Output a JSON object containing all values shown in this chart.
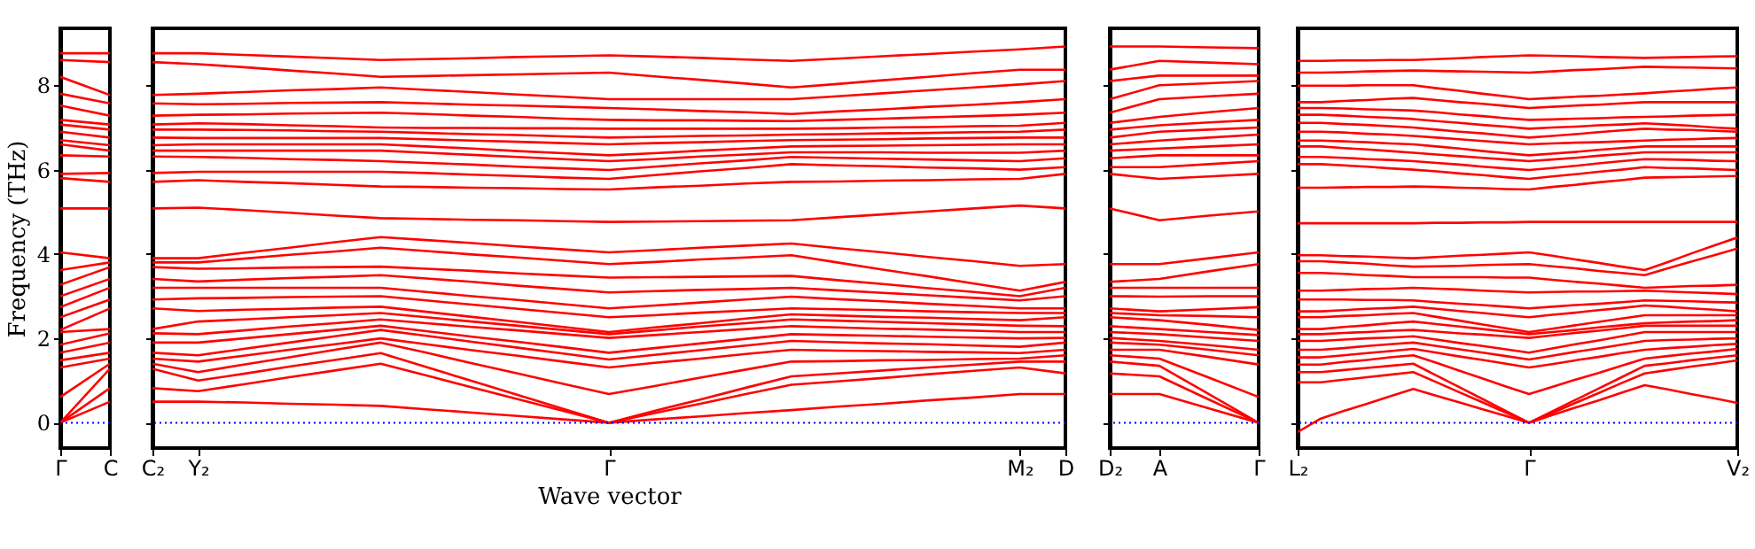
{
  "chart_data": [
    {
      "type": "line",
      "ylabel": "Frequency (THz)",
      "categories": [
        "Γ",
        "C"
      ],
      "ylim": [
        -0.6,
        9.35
      ],
      "yticks": [
        0,
        2,
        4,
        6,
        8
      ],
      "grid": false,
      "ref_lines": [
        {
          "axis": "y",
          "value": 0,
          "color": "#0000ff",
          "line_style": "dotted"
        }
      ],
      "series": [
        {
          "color": "#ff0000",
          "values": [
            0,
            0.5
          ]
        },
        {
          "color": "#ff0000",
          "values": [
            0,
            0.82
          ]
        },
        {
          "color": "#ff0000",
          "values": [
            0,
            1.28
          ]
        },
        {
          "color": "#ff0000",
          "values": [
            0.61,
            1.4
          ]
        },
        {
          "color": "#ff0000",
          "values": [
            1.31,
            1.52
          ]
        },
        {
          "color": "#ff0000",
          "values": [
            1.48,
            1.66
          ]
        },
        {
          "color": "#ff0000",
          "values": [
            1.66,
            1.9
          ]
        },
        {
          "color": "#ff0000",
          "values": [
            1.85,
            2.12
          ]
        },
        {
          "color": "#ff0000",
          "values": [
            2.15,
            2.22
          ]
        },
        {
          "color": "#ff0000",
          "values": [
            2.2,
            2.71
          ]
        },
        {
          "color": "#ff0000",
          "values": [
            2.5,
            2.92
          ]
        },
        {
          "color": "#ff0000",
          "values": [
            2.74,
            3.2
          ]
        },
        {
          "color": "#ff0000",
          "values": [
            3.0,
            3.41
          ]
        },
        {
          "color": "#ff0000",
          "values": [
            3.27,
            3.69
          ]
        },
        {
          "color": "#ff0000",
          "values": [
            3.62,
            3.8
          ]
        },
        {
          "color": "#ff0000",
          "values": [
            4.04,
            3.9
          ]
        },
        {
          "color": "#ff0000",
          "values": [
            5.08,
            5.08
          ]
        },
        {
          "color": "#ff0000",
          "values": [
            5.8,
            5.71
          ]
        },
        {
          "color": "#ff0000",
          "values": [
            5.9,
            5.92
          ]
        },
        {
          "color": "#ff0000",
          "values": [
            6.34,
            6.31
          ]
        },
        {
          "color": "#ff0000",
          "values": [
            6.6,
            6.45
          ]
        },
        {
          "color": "#ff0000",
          "values": [
            6.7,
            6.58
          ]
        },
        {
          "color": "#ff0000",
          "values": [
            6.9,
            6.76
          ]
        },
        {
          "color": "#ff0000",
          "values": [
            7.07,
            6.95
          ]
        },
        {
          "color": "#ff0000",
          "values": [
            7.18,
            7.07
          ]
        },
        {
          "color": "#ff0000",
          "values": [
            7.52,
            7.28
          ]
        },
        {
          "color": "#ff0000",
          "values": [
            7.8,
            7.57
          ]
        },
        {
          "color": "#ff0000",
          "values": [
            8.2,
            7.77
          ]
        },
        {
          "color": "#ff0000",
          "values": [
            8.6,
            8.55
          ]
        },
        {
          "color": "#ff0000",
          "values": [
            8.76,
            8.76
          ]
        }
      ]
    },
    {
      "type": "line",
      "xlabel": "Wave vector",
      "tick_labels": "x",
      "categories": [
        "C₂",
        "Y₂",
        null,
        null,
        null,
        null,
        null,
        null,
        null,
        null,
        "Γ",
        null,
        null,
        null,
        null,
        null,
        null,
        null,
        null,
        "M₂",
        "D"
      ],
      "ylim": [
        -0.6,
        9.35
      ],
      "yticks": [
        0,
        2,
        4,
        6,
        8
      ],
      "grid": false,
      "ref_lines": [
        {
          "axis": "y",
          "value": 0,
          "color": "#0000ff",
          "line_style": "dotted"
        }
      ],
      "series": [
        {
          "color": "#ff0000",
          "values": [
            0.5,
            0.5,
            0.48,
            0.45,
            0.43,
            0.4,
            0.32,
            0.24,
            0.16,
            0.08,
            0,
            0.08,
            0.15,
            0.23,
            0.3,
            0.38,
            0.45,
            0.53,
            0.6,
            0.68,
            0.68
          ]
        },
        {
          "color": "#ff0000",
          "values": [
            0.82,
            0.75,
            0.91,
            1.08,
            1.24,
            1.4,
            1.12,
            0.84,
            0.56,
            0.28,
            0,
            0.23,
            0.45,
            0.68,
            0.9,
            0.98,
            1.06,
            1.15,
            1.23,
            1.31,
            1.17
          ]
        },
        {
          "color": "#ff0000",
          "values": [
            1.28,
            1.0,
            1.16,
            1.33,
            1.49,
            1.65,
            1.32,
            0.99,
            0.66,
            0.33,
            0,
            0.28,
            0.55,
            0.83,
            1.1,
            1.17,
            1.24,
            1.31,
            1.38,
            1.45,
            1.45
          ]
        },
        {
          "color": "#ff0000",
          "values": [
            1.4,
            1.2,
            1.38,
            1.55,
            1.73,
            1.9,
            1.66,
            1.41,
            1.17,
            0.92,
            0.68,
            0.87,
            1.07,
            1.26,
            1.45,
            1.46,
            1.48,
            1.49,
            1.51,
            1.52,
            1.6
          ]
        },
        {
          "color": "#ff0000",
          "values": [
            1.52,
            1.45,
            1.59,
            1.73,
            1.86,
            2.0,
            1.86,
            1.72,
            1.59,
            1.45,
            1.31,
            1.42,
            1.52,
            1.63,
            1.73,
            1.71,
            1.7,
            1.68,
            1.67,
            1.65,
            1.73
          ]
        },
        {
          "color": "#ff0000",
          "values": [
            1.66,
            1.6,
            1.75,
            1.9,
            2.05,
            2.2,
            2.06,
            1.92,
            1.78,
            1.64,
            1.5,
            1.61,
            1.72,
            1.83,
            1.94,
            1.91,
            1.88,
            1.86,
            1.83,
            1.8,
            1.9
          ]
        },
        {
          "color": "#ff0000",
          "values": [
            1.9,
            1.9,
            2.0,
            2.1,
            2.2,
            2.3,
            2.17,
            2.04,
            1.92,
            1.79,
            1.66,
            1.77,
            1.88,
            1.99,
            2.1,
            2.08,
            2.06,
            2.04,
            2.02,
            2.0,
            2.01
          ]
        },
        {
          "color": "#ff0000",
          "values": [
            2.12,
            2.1,
            2.19,
            2.28,
            2.36,
            2.45,
            2.36,
            2.27,
            2.19,
            2.1,
            2.01,
            2.08,
            2.15,
            2.22,
            2.29,
            2.26,
            2.23,
            2.21,
            2.18,
            2.15,
            2.15
          ]
        },
        {
          "color": "#ff0000",
          "values": [
            2.22,
            2.4,
            2.45,
            2.5,
            2.55,
            2.6,
            2.5,
            2.4,
            2.3,
            2.2,
            2.1,
            2.19,
            2.28,
            2.36,
            2.45,
            2.42,
            2.39,
            2.36,
            2.33,
            2.3,
            2.29
          ]
        },
        {
          "color": "#ff0000",
          "values": [
            2.71,
            2.65,
            2.68,
            2.7,
            2.73,
            2.75,
            2.63,
            2.51,
            2.39,
            2.27,
            2.15,
            2.26,
            2.36,
            2.47,
            2.57,
            2.54,
            2.51,
            2.49,
            2.46,
            2.43,
            2.5
          ]
        },
        {
          "color": "#ff0000",
          "values": [
            2.92,
            2.95,
            2.96,
            2.98,
            2.99,
            3.0,
            2.9,
            2.8,
            2.7,
            2.6,
            2.5,
            2.55,
            2.61,
            2.66,
            2.71,
            2.69,
            2.67,
            2.64,
            2.62,
            2.6,
            2.6
          ]
        },
        {
          "color": "#ff0000",
          "values": [
            3.2,
            3.2,
            3.2,
            3.2,
            3.2,
            3.2,
            3.1,
            3.0,
            2.91,
            2.81,
            2.71,
            2.78,
            2.85,
            2.92,
            2.99,
            2.93,
            2.88,
            2.82,
            2.77,
            2.71,
            2.71
          ]
        },
        {
          "color": "#ff0000",
          "values": [
            3.41,
            3.35,
            3.39,
            3.43,
            3.46,
            3.5,
            3.42,
            3.34,
            3.25,
            3.17,
            3.09,
            3.12,
            3.15,
            3.17,
            3.2,
            3.14,
            3.08,
            3.02,
            2.96,
            2.9,
            3.0
          ]
        },
        {
          "color": "#ff0000",
          "values": [
            3.69,
            3.65,
            3.66,
            3.68,
            3.69,
            3.7,
            3.65,
            3.6,
            3.54,
            3.49,
            3.44,
            3.45,
            3.46,
            3.47,
            3.48,
            3.38,
            3.29,
            3.19,
            3.1,
            3.0,
            3.2
          ]
        },
        {
          "color": "#ff0000",
          "values": [
            3.8,
            3.8,
            3.89,
            3.98,
            4.06,
            4.15,
            4.07,
            3.99,
            3.92,
            3.84,
            3.76,
            3.81,
            3.87,
            3.92,
            3.97,
            3.8,
            3.63,
            3.47,
            3.3,
            3.13,
            3.34
          ]
        },
        {
          "color": "#ff0000",
          "values": [
            3.9,
            3.9,
            4.03,
            4.15,
            4.28,
            4.4,
            4.33,
            4.26,
            4.18,
            4.11,
            4.04,
            4.09,
            4.15,
            4.2,
            4.25,
            4.14,
            4.04,
            3.93,
            3.83,
            3.72,
            3.76
          ]
        },
        {
          "color": "#ff0000",
          "values": [
            5.08,
            5.1,
            5.04,
            4.98,
            4.91,
            4.85,
            4.83,
            4.81,
            4.8,
            4.78,
            4.76,
            4.77,
            4.78,
            4.79,
            4.8,
            4.87,
            4.94,
            5.01,
            5.08,
            5.15,
            5.08
          ]
        },
        {
          "color": "#ff0000",
          "values": [
            5.71,
            5.75,
            5.71,
            5.68,
            5.64,
            5.6,
            5.59,
            5.57,
            5.56,
            5.54,
            5.53,
            5.58,
            5.62,
            5.67,
            5.71,
            5.72,
            5.74,
            5.75,
            5.77,
            5.78,
            5.9
          ]
        },
        {
          "color": "#ff0000",
          "values": [
            5.92,
            5.95,
            5.95,
            5.95,
            5.95,
            5.95,
            5.92,
            5.88,
            5.85,
            5.81,
            5.78,
            5.87,
            5.96,
            6.04,
            6.13,
            6.1,
            6.08,
            6.05,
            6.03,
            6.0,
            6.06
          ]
        },
        {
          "color": "#ff0000",
          "values": [
            6.31,
            6.3,
            6.28,
            6.25,
            6.23,
            6.2,
            6.16,
            6.12,
            6.07,
            6.03,
            5.99,
            6.07,
            6.15,
            6.22,
            6.3,
            6.28,
            6.26,
            6.24,
            6.22,
            6.2,
            6.27
          ]
        },
        {
          "color": "#ff0000",
          "values": [
            6.45,
            6.45,
            6.45,
            6.45,
            6.45,
            6.45,
            6.4,
            6.35,
            6.3,
            6.25,
            6.2,
            6.25,
            6.31,
            6.36,
            6.41,
            6.41,
            6.41,
            6.4,
            6.4,
            6.4,
            6.45
          ]
        },
        {
          "color": "#ff0000",
          "values": [
            6.58,
            6.6,
            6.6,
            6.6,
            6.6,
            6.6,
            6.55,
            6.5,
            6.44,
            6.39,
            6.34,
            6.39,
            6.45,
            6.5,
            6.55,
            6.56,
            6.57,
            6.58,
            6.59,
            6.6,
            6.6
          ]
        },
        {
          "color": "#ff0000",
          "values": [
            6.76,
            6.75,
            6.75,
            6.75,
            6.75,
            6.75,
            6.72,
            6.69,
            6.66,
            6.63,
            6.6,
            6.63,
            6.65,
            6.68,
            6.7,
            6.71,
            6.72,
            6.74,
            6.75,
            6.76,
            6.76
          ]
        },
        {
          "color": "#ff0000",
          "values": [
            6.95,
            6.95,
            6.94,
            6.93,
            6.91,
            6.9,
            6.87,
            6.84,
            6.82,
            6.79,
            6.76,
            6.78,
            6.8,
            6.81,
            6.83,
            6.84,
            6.86,
            6.87,
            6.89,
            6.9,
            6.95
          ]
        },
        {
          "color": "#ff0000",
          "values": [
            7.07,
            7.1,
            7.08,
            7.05,
            7.03,
            7.0,
            6.99,
            6.99,
            6.98,
            6.98,
            6.97,
            6.97,
            6.97,
            6.97,
            6.97,
            6.98,
            7.0,
            7.01,
            7.03,
            7.04,
            7.11
          ]
        },
        {
          "color": "#ff0000",
          "values": [
            7.28,
            7.3,
            7.31,
            7.33,
            7.34,
            7.35,
            7.32,
            7.28,
            7.25,
            7.21,
            7.18,
            7.17,
            7.17,
            7.16,
            7.15,
            7.18,
            7.21,
            7.24,
            7.27,
            7.3,
            7.35
          ]
        },
        {
          "color": "#ff0000",
          "values": [
            7.57,
            7.55,
            7.56,
            7.58,
            7.59,
            7.6,
            7.57,
            7.54,
            7.52,
            7.49,
            7.46,
            7.43,
            7.39,
            7.36,
            7.32,
            7.38,
            7.43,
            7.49,
            7.54,
            7.6,
            7.67
          ]
        },
        {
          "color": "#ff0000",
          "values": [
            7.77,
            7.8,
            7.84,
            7.88,
            7.91,
            7.95,
            7.89,
            7.84,
            7.78,
            7.73,
            7.67,
            7.67,
            7.67,
            7.67,
            7.67,
            7.74,
            7.81,
            7.88,
            7.95,
            8.02,
            8.1
          ]
        },
        {
          "color": "#ff0000",
          "values": [
            8.55,
            8.5,
            8.43,
            8.35,
            8.28,
            8.2,
            8.22,
            8.24,
            8.26,
            8.28,
            8.3,
            8.21,
            8.13,
            8.04,
            7.95,
            8.03,
            8.12,
            8.2,
            8.29,
            8.37,
            8.37
          ]
        },
        {
          "color": "#ff0000",
          "values": [
            8.76,
            8.76,
            8.72,
            8.68,
            8.64,
            8.6,
            8.62,
            8.64,
            8.67,
            8.69,
            8.71,
            8.68,
            8.65,
            8.61,
            8.58,
            8.63,
            8.69,
            8.74,
            8.8,
            8.85,
            8.92
          ]
        }
      ]
    },
    {
      "type": "line",
      "tick_labels": "x",
      "categories": [
        "D₂",
        "A",
        null,
        "Γ"
      ],
      "ylim": [
        -0.6,
        9.35
      ],
      "yticks": [
        0,
        2,
        4,
        6,
        8
      ],
      "grid": false,
      "ref_lines": [
        {
          "axis": "y",
          "value": 0,
          "color": "#0000ff",
          "line_style": "dotted"
        }
      ],
      "series": [
        {
          "color": "#ff0000",
          "values": [
            0.68,
            0.68,
            0.34,
            0
          ]
        },
        {
          "color": "#ff0000",
          "values": [
            1.17,
            1.1,
            0.55,
            0
          ]
        },
        {
          "color": "#ff0000",
          "values": [
            1.45,
            1.35,
            0.68,
            0
          ]
        },
        {
          "color": "#ff0000",
          "values": [
            1.6,
            1.52,
            1.07,
            0.61
          ]
        },
        {
          "color": "#ff0000",
          "values": [
            1.73,
            1.73,
            1.56,
            1.38
          ]
        },
        {
          "color": "#ff0000",
          "values": [
            1.9,
            1.85,
            1.73,
            1.6
          ]
        },
        {
          "color": "#ff0000",
          "values": [
            2.01,
            1.94,
            1.84,
            1.73
          ]
        },
        {
          "color": "#ff0000",
          "values": [
            2.15,
            2.1,
            2.02,
            1.94
          ]
        },
        {
          "color": "#ff0000",
          "values": [
            2.29,
            2.22,
            2.15,
            2.08
          ]
        },
        {
          "color": "#ff0000",
          "values": [
            2.5,
            2.43,
            2.32,
            2.2
          ]
        },
        {
          "color": "#ff0000",
          "values": [
            2.6,
            2.55,
            2.53,
            2.5
          ]
        },
        {
          "color": "#ff0000",
          "values": [
            2.71,
            2.64,
            2.69,
            2.74
          ]
        },
        {
          "color": "#ff0000",
          "values": [
            3.0,
            2.99,
            3.0,
            3.0
          ]
        },
        {
          "color": "#ff0000",
          "values": [
            3.2,
            3.2,
            3.2,
            3.2
          ]
        },
        {
          "color": "#ff0000",
          "values": [
            3.34,
            3.41,
            3.59,
            3.76
          ]
        },
        {
          "color": "#ff0000",
          "values": [
            3.76,
            3.76,
            3.9,
            4.04
          ]
        },
        {
          "color": "#ff0000",
          "values": [
            5.08,
            4.8,
            4.91,
            5.01
          ]
        },
        {
          "color": "#ff0000",
          "values": [
            5.9,
            5.78,
            5.84,
            5.9
          ]
        },
        {
          "color": "#ff0000",
          "values": [
            6.06,
            6.06,
            6.13,
            6.2
          ]
        },
        {
          "color": "#ff0000",
          "values": [
            6.27,
            6.34,
            6.34,
            6.34
          ]
        },
        {
          "color": "#ff0000",
          "values": [
            6.45,
            6.5,
            6.55,
            6.6
          ]
        },
        {
          "color": "#ff0000",
          "values": [
            6.6,
            6.69,
            6.76,
            6.83
          ]
        },
        {
          "color": "#ff0000",
          "values": [
            6.76,
            6.9,
            6.95,
            7.0
          ]
        },
        {
          "color": "#ff0000",
          "values": [
            6.95,
            7.05,
            7.12,
            7.18
          ]
        },
        {
          "color": "#ff0000",
          "values": [
            7.11,
            7.25,
            7.36,
            7.46
          ]
        },
        {
          "color": "#ff0000",
          "values": [
            7.35,
            7.67,
            7.74,
            7.8
          ]
        },
        {
          "color": "#ff0000",
          "values": [
            7.67,
            8.0,
            8.05,
            8.1
          ]
        },
        {
          "color": "#ff0000",
          "values": [
            8.1,
            8.23,
            8.23,
            8.23
          ]
        },
        {
          "color": "#ff0000",
          "values": [
            8.37,
            8.58,
            8.54,
            8.5
          ]
        },
        {
          "color": "#ff0000",
          "values": [
            8.92,
            8.92,
            8.9,
            8.88
          ]
        }
      ]
    },
    {
      "type": "line",
      "tick_labels": "x",
      "categories": [
        "L₂",
        null,
        null,
        null,
        null,
        null,
        null,
        null,
        null,
        null,
        "Γ",
        null,
        null,
        null,
        null,
        null,
        null,
        null,
        null,
        "V₂"
      ],
      "ylim": [
        -0.6,
        9.35
      ],
      "yticks": [
        0,
        2,
        4,
        6,
        8
      ],
      "grid": false,
      "ref_lines": [
        {
          "axis": "y",
          "value": 0,
          "color": "#0000ff",
          "line_style": "dotted"
        }
      ],
      "series": [
        {
          "color": "#ff0000",
          "values": [
            -0.22,
            0.1,
            0.28,
            0.45,
            0.63,
            0.8,
            0.64,
            0.48,
            0.32,
            0.16,
            0,
            0.18,
            0.36,
            0.53,
            0.71,
            0.89,
            0.79,
            0.68,
            0.58,
            0.47
          ]
        },
        {
          "color": "#ff0000",
          "values": [
            0.96,
            0.96,
            1.02,
            1.08,
            1.14,
            1.2,
            0.96,
            0.72,
            0.48,
            0.24,
            0,
            0.23,
            0.47,
            0.7,
            0.94,
            1.17,
            1.25,
            1.33,
            1.4,
            1.48
          ]
        },
        {
          "color": "#ff0000",
          "values": [
            1.2,
            1.2,
            1.25,
            1.3,
            1.35,
            1.4,
            1.12,
            0.84,
            0.56,
            0.28,
            0,
            0.27,
            0.54,
            0.81,
            1.08,
            1.35,
            1.41,
            1.48,
            1.54,
            1.6
          ]
        },
        {
          "color": "#ff0000",
          "values": [
            1.38,
            1.38,
            1.44,
            1.49,
            1.55,
            1.6,
            1.42,
            1.23,
            1.05,
            0.86,
            0.68,
            0.85,
            1.02,
            1.18,
            1.35,
            1.52,
            1.58,
            1.64,
            1.69,
            1.75
          ]
        },
        {
          "color": "#ff0000",
          "values": [
            1.55,
            1.55,
            1.6,
            1.65,
            1.7,
            1.75,
            1.66,
            1.57,
            1.49,
            1.4,
            1.31,
            1.39,
            1.48,
            1.56,
            1.65,
            1.73,
            1.77,
            1.8,
            1.84,
            1.87
          ]
        },
        {
          "color": "#ff0000",
          "values": [
            1.73,
            1.73,
            1.77,
            1.82,
            1.86,
            1.9,
            1.82,
            1.74,
            1.66,
            1.58,
            1.5,
            1.59,
            1.68,
            1.76,
            1.85,
            1.94,
            1.96,
            1.97,
            1.99,
            2.0
          ]
        },
        {
          "color": "#ff0000",
          "values": [
            1.94,
            1.94,
            1.97,
            2.0,
            2.02,
            2.05,
            1.97,
            1.89,
            1.82,
            1.74,
            1.66,
            1.76,
            1.86,
            1.95,
            2.05,
            2.15,
            2.15,
            2.15,
            2.15,
            2.15
          ]
        },
        {
          "color": "#ff0000",
          "values": [
            2.1,
            2.1,
            2.13,
            2.15,
            2.18,
            2.2,
            2.16,
            2.12,
            2.09,
            2.05,
            2.01,
            2.07,
            2.13,
            2.18,
            2.24,
            2.3,
            2.3,
            2.3,
            2.3,
            2.3
          ]
        },
        {
          "color": "#ff0000",
          "values": [
            2.22,
            2.22,
            2.27,
            2.31,
            2.36,
            2.4,
            2.34,
            2.28,
            2.22,
            2.16,
            2.1,
            2.15,
            2.2,
            2.26,
            2.31,
            2.36,
            2.38,
            2.4,
            2.41,
            2.43
          ]
        },
        {
          "color": "#ff0000",
          "values": [
            2.5,
            2.5,
            2.53,
            2.55,
            2.58,
            2.6,
            2.51,
            2.42,
            2.33,
            2.24,
            2.15,
            2.23,
            2.31,
            2.39,
            2.47,
            2.55,
            2.55,
            2.55,
            2.55,
            2.55
          ]
        },
        {
          "color": "#ff0000",
          "values": [
            2.64,
            2.64,
            2.67,
            2.7,
            2.72,
            2.75,
            2.7,
            2.65,
            2.6,
            2.55,
            2.5,
            2.56,
            2.61,
            2.67,
            2.72,
            2.78,
            2.75,
            2.71,
            2.68,
            2.64
          ]
        },
        {
          "color": "#ff0000",
          "values": [
            2.92,
            2.92,
            2.92,
            2.91,
            2.91,
            2.9,
            2.86,
            2.82,
            2.79,
            2.75,
            2.71,
            2.75,
            2.79,
            2.82,
            2.86,
            2.9,
            2.89,
            2.88,
            2.86,
            2.85
          ]
        },
        {
          "color": "#ff0000",
          "values": [
            3.13,
            3.13,
            3.15,
            3.17,
            3.18,
            3.2,
            3.18,
            3.16,
            3.13,
            3.11,
            3.09,
            3.1,
            3.11,
            3.11,
            3.12,
            3.13,
            3.11,
            3.09,
            3.07,
            3.05
          ]
        },
        {
          "color": "#ff0000",
          "values": [
            3.55,
            3.55,
            3.53,
            3.5,
            3.48,
            3.45,
            3.45,
            3.45,
            3.45,
            3.44,
            3.44,
            3.39,
            3.34,
            3.3,
            3.25,
            3.2,
            3.22,
            3.24,
            3.25,
            3.27
          ]
        },
        {
          "color": "#ff0000",
          "values": [
            3.83,
            3.83,
            3.8,
            3.77,
            3.73,
            3.7,
            3.71,
            3.72,
            3.74,
            3.75,
            3.76,
            3.71,
            3.66,
            3.6,
            3.55,
            3.5,
            3.66,
            3.82,
            3.97,
            4.13
          ]
        },
        {
          "color": "#ff0000",
          "values": [
            3.97,
            3.97,
            3.95,
            3.94,
            3.92,
            3.9,
            3.93,
            3.96,
            3.98,
            4.01,
            4.04,
            3.96,
            3.87,
            3.79,
            3.7,
            3.62,
            3.81,
            4.01,
            4.2,
            4.39
          ]
        },
        {
          "color": "#ff0000",
          "values": [
            4.73,
            4.73,
            4.73,
            4.73,
            4.73,
            4.73,
            4.74,
            4.74,
            4.75,
            4.75,
            4.76,
            4.76,
            4.76,
            4.76,
            4.76,
            4.76,
            4.76,
            4.76,
            4.76,
            4.76
          ]
        },
        {
          "color": "#ff0000",
          "values": [
            5.57,
            5.57,
            5.58,
            5.59,
            5.59,
            5.6,
            5.59,
            5.57,
            5.56,
            5.54,
            5.53,
            5.59,
            5.64,
            5.7,
            5.75,
            5.81,
            5.82,
            5.83,
            5.84,
            5.85
          ]
        },
        {
          "color": "#ff0000",
          "values": [
            6.13,
            6.13,
            6.1,
            6.07,
            6.03,
            6.0,
            5.96,
            5.91,
            5.87,
            5.82,
            5.78,
            5.84,
            5.89,
            5.95,
            6.0,
            6.06,
            6.04,
            6.03,
            6.01,
            5.99
          ]
        },
        {
          "color": "#ff0000",
          "values": [
            6.3,
            6.3,
            6.28,
            6.25,
            6.23,
            6.2,
            6.16,
            6.12,
            6.07,
            6.03,
            5.99,
            6.04,
            6.09,
            6.15,
            6.2,
            6.25,
            6.24,
            6.23,
            6.21,
            6.2
          ]
        },
        {
          "color": "#ff0000",
          "values": [
            6.55,
            6.55,
            6.51,
            6.48,
            6.44,
            6.4,
            6.36,
            6.32,
            6.28,
            6.24,
            6.2,
            6.24,
            6.28,
            6.33,
            6.37,
            6.41,
            6.41,
            6.41,
            6.41,
            6.41
          ]
        },
        {
          "color": "#ff0000",
          "values": [
            6.69,
            6.69,
            6.67,
            6.65,
            6.62,
            6.6,
            6.55,
            6.5,
            6.44,
            6.39,
            6.34,
            6.38,
            6.42,
            6.47,
            6.51,
            6.55,
            6.55,
            6.55,
            6.55,
            6.55
          ]
        },
        {
          "color": "#ff0000",
          "values": [
            6.9,
            6.9,
            6.88,
            6.85,
            6.83,
            6.8,
            6.76,
            6.72,
            6.68,
            6.64,
            6.6,
            6.62,
            6.64,
            6.65,
            6.67,
            6.69,
            6.71,
            6.72,
            6.74,
            6.75
          ]
        },
        {
          "color": "#ff0000",
          "values": [
            7.11,
            7.11,
            7.08,
            7.06,
            7.03,
            7.0,
            6.95,
            6.9,
            6.86,
            6.81,
            6.76,
            6.8,
            6.84,
            6.89,
            6.93,
            6.97,
            6.95,
            6.94,
            6.92,
            6.9
          ]
        },
        {
          "color": "#ff0000",
          "values": [
            7.3,
            7.3,
            7.28,
            7.25,
            7.23,
            7.2,
            7.15,
            7.11,
            7.06,
            7.02,
            6.97,
            7.0,
            7.02,
            7.05,
            7.07,
            7.1,
            7.07,
            7.04,
            7.0,
            6.97
          ]
        },
        {
          "color": "#ff0000",
          "values": [
            7.46,
            7.46,
            7.45,
            7.43,
            7.42,
            7.4,
            7.36,
            7.31,
            7.27,
            7.22,
            7.18,
            7.19,
            7.21,
            7.22,
            7.24,
            7.25,
            7.26,
            7.28,
            7.29,
            7.3
          ]
        },
        {
          "color": "#ff0000",
          "values": [
            7.6,
            7.6,
            7.63,
            7.65,
            7.68,
            7.7,
            7.65,
            7.6,
            7.56,
            7.51,
            7.46,
            7.49,
            7.52,
            7.54,
            7.57,
            7.6,
            7.6,
            7.6,
            7.6,
            7.6
          ]
        },
        {
          "color": "#ff0000",
          "values": [
            7.99,
            7.99,
            7.99,
            8.0,
            8.0,
            8.0,
            7.93,
            7.87,
            7.8,
            7.74,
            7.67,
            7.7,
            7.73,
            7.75,
            7.78,
            7.81,
            7.85,
            7.88,
            7.92,
            7.95
          ]
        },
        {
          "color": "#ff0000",
          "values": [
            8.3,
            8.3,
            8.31,
            8.33,
            8.34,
            8.35,
            8.34,
            8.33,
            8.32,
            8.31,
            8.3,
            8.33,
            8.36,
            8.38,
            8.41,
            8.44,
            8.43,
            8.42,
            8.41,
            8.4
          ]
        },
        {
          "color": "#ff0000",
          "values": [
            8.58,
            8.58,
            8.59,
            8.59,
            8.6,
            8.6,
            8.62,
            8.64,
            8.67,
            8.69,
            8.71,
            8.7,
            8.69,
            8.67,
            8.66,
            8.65,
            8.66,
            8.67,
            8.68,
            8.69
          ]
        }
      ]
    }
  ]
}
